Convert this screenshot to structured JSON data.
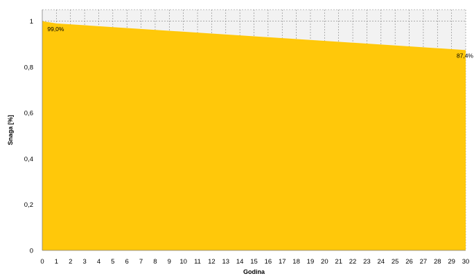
{
  "chart_data": {
    "type": "area",
    "xlabel": "Godina",
    "ylabel": "Snaga [%]",
    "xlim": [
      0,
      30
    ],
    "ylim": [
      0,
      1.05
    ],
    "x_ticks": [
      "0",
      "1",
      "2",
      "3",
      "4",
      "5",
      "6",
      "7",
      "8",
      "9",
      "10",
      "11",
      "12",
      "13",
      "14",
      "15",
      "16",
      "17",
      "18",
      "19",
      "20",
      "21",
      "22",
      "23",
      "24",
      "25",
      "26",
      "27",
      "28",
      "29",
      "30"
    ],
    "y_ticks": [
      {
        "value": 0,
        "label": "0"
      },
      {
        "value": 0.2,
        "label": "0,2"
      },
      {
        "value": 0.4,
        "label": "0,4"
      },
      {
        "value": 0.6,
        "label": "0,6"
      },
      {
        "value": 0.8,
        "label": "0,8"
      },
      {
        "value": 1.0,
        "label": "1"
      }
    ],
    "grid": true,
    "series": [
      {
        "color": "#FFC80A",
        "x": [
          0,
          1,
          30
        ],
        "y": [
          1.0,
          0.99,
          0.874
        ]
      }
    ],
    "annotations": [
      {
        "x": 1,
        "y": 0.99,
        "label": "99,0%"
      },
      {
        "x": 30,
        "y": 0.874,
        "label": "87,4%"
      }
    ]
  }
}
